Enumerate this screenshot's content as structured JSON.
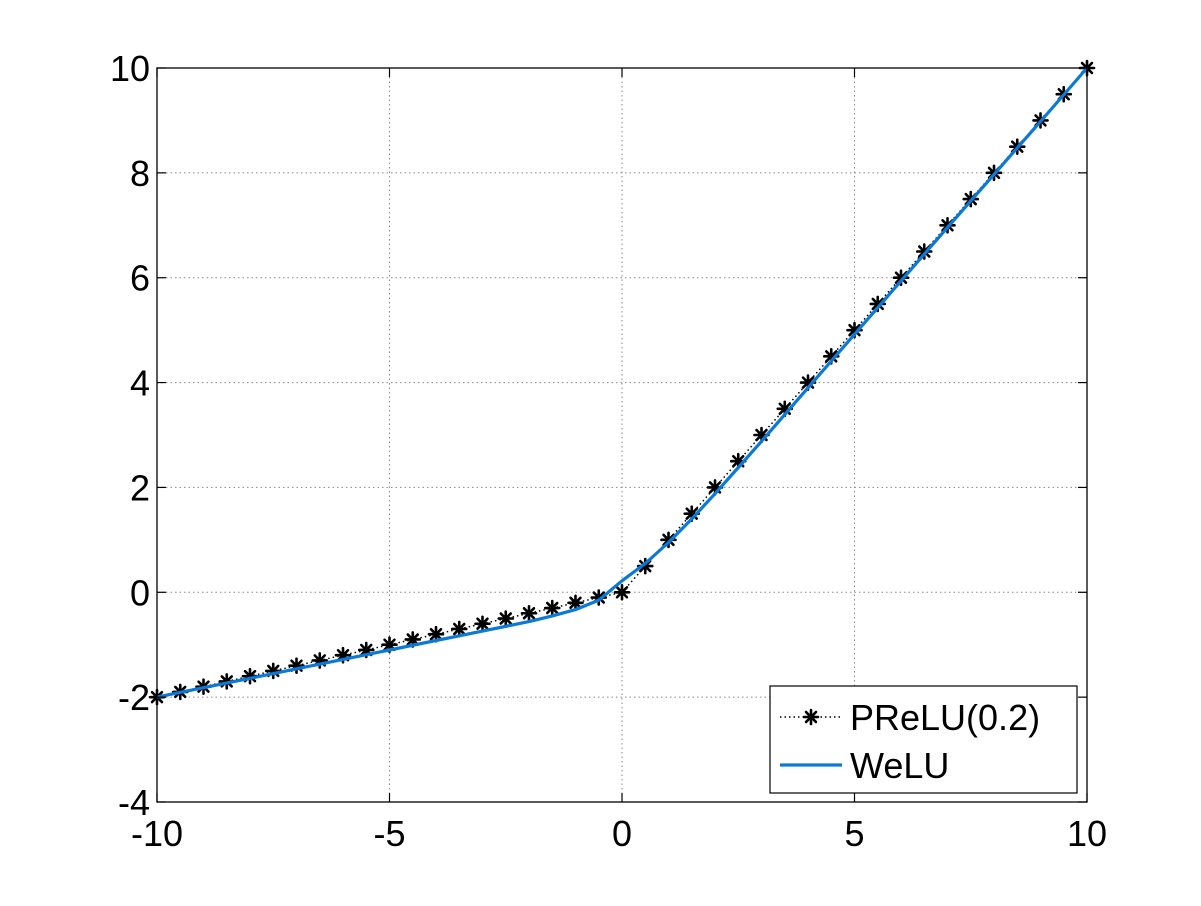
{
  "chart_data": {
    "type": "line",
    "title": "",
    "xlabel": "",
    "ylabel": "",
    "xlim": [
      -10,
      10
    ],
    "ylim": [
      -4,
      10
    ],
    "xticks": [
      -10,
      -5,
      0,
      5,
      10
    ],
    "yticks": [
      -4,
      -2,
      0,
      2,
      4,
      6,
      8,
      10
    ],
    "xtick_labels": [
      "-10",
      "-5",
      "0",
      "5",
      "10"
    ],
    "ytick_labels": [
      "-4",
      "-2",
      "0",
      "2",
      "4",
      "6",
      "8",
      "10"
    ],
    "grid": true,
    "legend_position": "bottom-right",
    "series": [
      {
        "name": "PReLU(0.2)",
        "style": "dotted-with-star-markers",
        "color": "#000000",
        "x": [
          -10,
          -9.5,
          -9,
          -8.5,
          -8,
          -7.5,
          -7,
          -6.5,
          -6,
          -5.5,
          -5,
          -4.5,
          -4,
          -3.5,
          -3,
          -2.5,
          -2,
          -1.5,
          -1,
          -0.5,
          0,
          0.5,
          1,
          1.5,
          2,
          2.5,
          3,
          3.5,
          4,
          4.5,
          5,
          5.5,
          6,
          6.5,
          7,
          7.5,
          8,
          8.5,
          9,
          9.5,
          10
        ],
        "y": [
          -2,
          -1.9,
          -1.8,
          -1.7,
          -1.6,
          -1.5,
          -1.4,
          -1.3,
          -1.2,
          -1.1,
          -1,
          -0.9,
          -0.8,
          -0.7,
          -0.6,
          -0.5,
          -0.4,
          -0.3,
          -0.2,
          -0.1,
          0,
          0.5,
          1,
          1.5,
          2,
          2.5,
          3,
          3.5,
          4,
          4.5,
          5,
          5.5,
          6,
          6.5,
          7,
          7.5,
          8,
          8.5,
          9,
          9.5,
          10
        ]
      },
      {
        "name": "WeLU",
        "style": "solid",
        "color": "#0a7ad6",
        "x": [
          -10,
          -9,
          -8,
          -7,
          -6,
          -5,
          -4,
          -3,
          -2,
          -1.5,
          -1,
          -0.5,
          0,
          0.5,
          1,
          1.5,
          2,
          2.5,
          3,
          4,
          5,
          6,
          7,
          8,
          9,
          10
        ],
        "y": [
          -2,
          -1.82,
          -1.64,
          -1.46,
          -1.28,
          -1.1,
          -0.92,
          -0.74,
          -0.56,
          -0.45,
          -0.33,
          -0.15,
          0.22,
          0.55,
          0.95,
          1.4,
          1.88,
          2.38,
          2.88,
          3.9,
          4.92,
          5.94,
          6.96,
          7.97,
          8.98,
          10
        ]
      }
    ]
  }
}
